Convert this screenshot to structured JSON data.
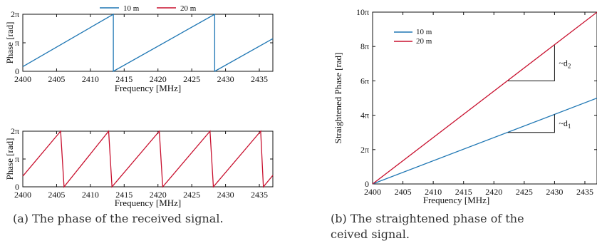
{
  "colors": {
    "series_10m": "#1f77b4",
    "series_20m": "#c8102e"
  },
  "captions": {
    "a": "(a) The phase of the received signal.",
    "b_line1": "(b) The straightened phase of the",
    "b_line2": "ceived signal."
  },
  "chart_data": [
    {
      "type": "line",
      "id": "a-top",
      "legend": [
        "10 m",
        "20 m"
      ],
      "legend_position": "top",
      "xlabel": "Frequency [MHz]",
      "ylabel": "Phase [rad]",
      "xlim": [
        2400,
        2437
      ],
      "ylim": [
        0,
        6.2832
      ],
      "xticks": [
        2400,
        2405,
        2410,
        2415,
        2420,
        2425,
        2430,
        2435
      ],
      "yticks": [
        {
          "v": 0,
          "label": "0"
        },
        {
          "v": 3.1416,
          "label": "π"
        },
        {
          "v": 6.2832,
          "label": "2π"
        }
      ],
      "series": [
        {
          "name": "10 m",
          "color": "#1f77b4",
          "points": [
            [
              2400,
              0.52
            ],
            [
              2413.4,
              6.2832
            ],
            [
              2413.4,
              0
            ],
            [
              2428.4,
              6.2832
            ],
            [
              2428.4,
              0
            ],
            [
              2437,
              3.6
            ]
          ]
        }
      ]
    },
    {
      "type": "line",
      "id": "a-bottom",
      "xlabel": "Frequency [MHz]",
      "ylabel": "Phase [rad]",
      "xlim": [
        2400,
        2437
      ],
      "ylim": [
        0,
        6.2832
      ],
      "xticks": [
        2400,
        2405,
        2410,
        2415,
        2420,
        2425,
        2430,
        2435
      ],
      "yticks": [
        {
          "v": 0,
          "label": "0"
        },
        {
          "v": 3.1416,
          "label": "π"
        },
        {
          "v": 6.2832,
          "label": "2π"
        }
      ],
      "series": [
        {
          "name": "20 m",
          "color": "#c8102e",
          "points": [
            [
              2400,
              1.2
            ],
            [
              2405.6,
              6.2832
            ],
            [
              2406.1,
              0
            ],
            [
              2412.7,
              6.2832
            ],
            [
              2413.2,
              0
            ],
            [
              2420.2,
              6.2832
            ],
            [
              2420.7,
              0
            ],
            [
              2427.7,
              6.2832
            ],
            [
              2428.2,
              0
            ],
            [
              2435.2,
              6.2832
            ],
            [
              2435.6,
              0
            ],
            [
              2437,
              1.3
            ]
          ]
        }
      ]
    },
    {
      "type": "line",
      "id": "b",
      "legend": [
        "10 m",
        "20 m"
      ],
      "legend_position": "top-left",
      "xlabel": "Frequency [MHz]",
      "ylabel": "Straightened Phase [rad]",
      "xlim": [
        2400,
        2437
      ],
      "ylim": [
        0,
        31.416
      ],
      "xticks": [
        2400,
        2405,
        2410,
        2415,
        2420,
        2425,
        2430,
        2435
      ],
      "yticks": [
        {
          "v": 0,
          "label": "0"
        },
        {
          "v": 6.2832,
          "label": "2π"
        },
        {
          "v": 12.566,
          "label": "4π"
        },
        {
          "v": 18.85,
          "label": "6π"
        },
        {
          "v": 25.133,
          "label": "8π"
        },
        {
          "v": 31.416,
          "label": "10π"
        }
      ],
      "series": [
        {
          "name": "10 m",
          "color": "#1f77b4",
          "points": [
            [
              2400,
              0
            ],
            [
              2437,
              15.7
            ]
          ]
        },
        {
          "name": "20 m",
          "color": "#c8102e",
          "points": [
            [
              2400,
              0
            ],
            [
              2437,
              31.4
            ]
          ]
        }
      ],
      "annotations": [
        {
          "text": "~d",
          "sub": "2",
          "x1": 2422.3,
          "x2": 2430,
          "y1": 18.85,
          "y2": 25.35
        },
        {
          "text": "~d",
          "sub": "1",
          "x1": 2422.3,
          "x2": 2430,
          "y1": 9.42,
          "y2": 12.72
        }
      ]
    }
  ]
}
